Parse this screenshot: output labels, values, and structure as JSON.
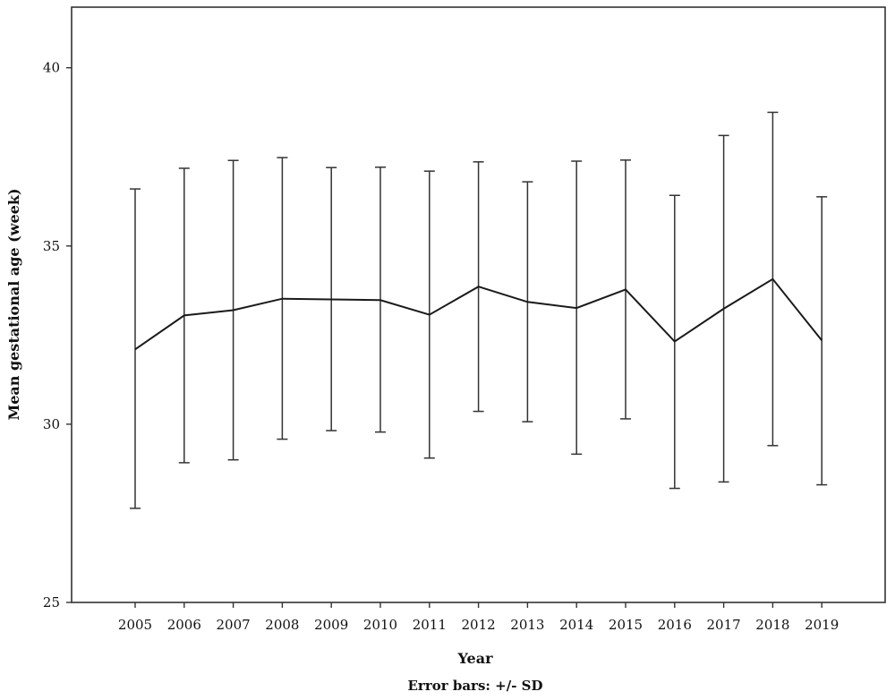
{
  "chart_data": {
    "type": "line",
    "title": "",
    "xlabel": "Year",
    "ylabel": "Mean gestational age (week)",
    "note": "Error bars: +/- SD",
    "ylim": [
      25,
      41.7
    ],
    "yticks": [
      25,
      30,
      35,
      40
    ],
    "grid": false,
    "categories": [
      "2005",
      "2006",
      "2007",
      "2008",
      "2009",
      "2010",
      "2011",
      "2012",
      "2013",
      "2014",
      "2015",
      "2016",
      "2017",
      "2018",
      "2019"
    ],
    "series": [
      {
        "values": [
          32.1,
          33.05,
          33.2,
          33.52,
          33.5,
          33.48,
          33.07,
          33.86,
          33.43,
          33.26,
          33.78,
          32.32,
          33.24,
          34.07,
          32.35
        ],
        "error_high": [
          36.6,
          37.18,
          37.4,
          37.48,
          37.2,
          37.21,
          37.1,
          37.36,
          36.8,
          37.38,
          37.41,
          36.42,
          38.1,
          38.75,
          36.38
        ],
        "error_low": [
          27.64,
          28.92,
          29.0,
          29.58,
          29.82,
          29.78,
          29.05,
          30.36,
          30.07,
          29.16,
          30.15,
          28.2,
          28.38,
          29.4,
          28.3
        ]
      }
    ]
  }
}
